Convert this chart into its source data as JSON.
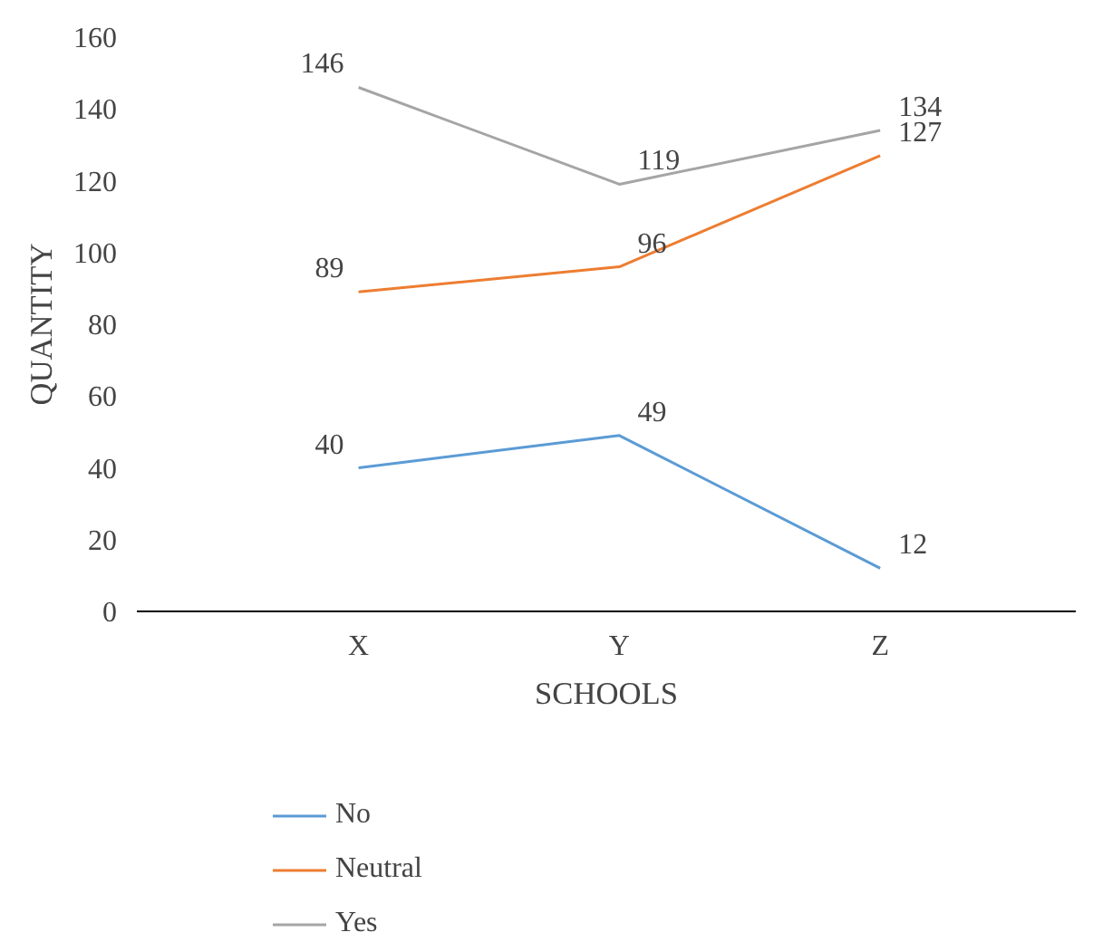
{
  "chart_data": {
    "type": "line",
    "xlabel": "SCHOOLS",
    "ylabel": "QUANTITY",
    "categories": [
      "X",
      "Y",
      "Z"
    ],
    "series": [
      {
        "name": "No",
        "color": "#5b9bd5",
        "values": [
          40,
          49,
          12
        ]
      },
      {
        "name": "Neutral",
        "color": "#ed7d31",
        "values": [
          89,
          96,
          127
        ]
      },
      {
        "name": "Yes",
        "color": "#a5a5a5",
        "values": [
          146,
          119,
          134
        ]
      }
    ],
    "ylim": [
      0,
      160
    ],
    "yticks": [
      0,
      20,
      40,
      60,
      80,
      100,
      120,
      140,
      160
    ],
    "data_labels": true,
    "grid": false,
    "legend": "bottom",
    "marker": "none",
    "line_style": "solid"
  }
}
